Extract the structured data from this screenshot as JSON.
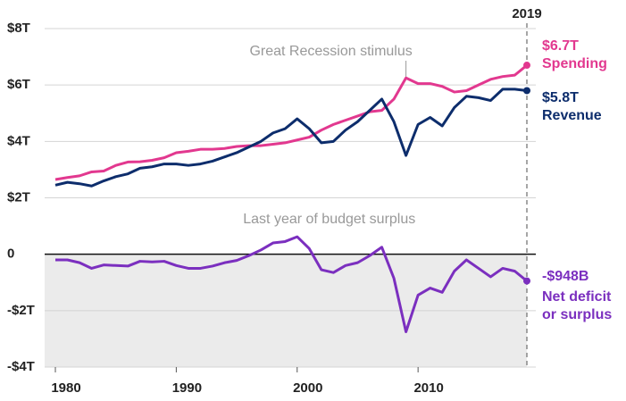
{
  "chart_data": {
    "type": "line",
    "x": [
      1980,
      1981,
      1982,
      1983,
      1984,
      1985,
      1986,
      1987,
      1988,
      1989,
      1990,
      1991,
      1992,
      1993,
      1994,
      1995,
      1996,
      1997,
      1998,
      1999,
      2000,
      2001,
      2002,
      2003,
      2004,
      2005,
      2006,
      2007,
      2008,
      2009,
      2010,
      2011,
      2012,
      2013,
      2014,
      2015,
      2016,
      2017,
      2018,
      2019
    ],
    "xlim": [
      1980,
      2019
    ],
    "xticks": [
      1980,
      1990,
      2000,
      2010
    ],
    "ylim": [
      -4,
      8
    ],
    "yticks": [
      {
        "value": 8,
        "label": "$8T"
      },
      {
        "value": 6,
        "label": "$6T"
      },
      {
        "value": 4,
        "label": "$4T"
      },
      {
        "value": 2,
        "label": "$2T"
      },
      0,
      {
        "value": -2,
        "label": "-$2T"
      },
      {
        "value": -4,
        "label": "-$4T"
      }
    ],
    "grid": true,
    "marker_year": 2019,
    "annotations": [
      {
        "text": "Great Recession stimulus",
        "x": 2009
      },
      {
        "text": "Last year of budget surplus",
        "x": 2000
      }
    ],
    "series": [
      {
        "name": "Spending",
        "color": "#e2388f",
        "values": [
          2.65,
          2.72,
          2.78,
          2.92,
          2.95,
          3.15,
          3.27,
          3.28,
          3.33,
          3.42,
          3.6,
          3.65,
          3.72,
          3.72,
          3.75,
          3.82,
          3.85,
          3.85,
          3.9,
          3.95,
          4.05,
          4.15,
          4.4,
          4.6,
          4.75,
          4.9,
          5.05,
          5.1,
          5.5,
          6.25,
          6.05,
          6.05,
          5.95,
          5.75,
          5.8,
          6.0,
          6.2,
          6.3,
          6.35,
          6.7
        ],
        "value_labels": [
          null,
          null,
          null,
          null,
          null,
          null,
          null,
          null,
          null,
          null,
          null,
          null,
          null,
          null,
          null,
          null,
          null,
          null,
          null,
          null,
          null,
          null,
          null,
          null,
          null,
          null,
          null,
          null,
          null,
          null,
          null,
          null,
          null,
          null,
          null,
          null,
          null,
          null,
          null,
          "$6.7T"
        ]
      },
      {
        "name": "Revenue",
        "color": "#0d2d6c",
        "values": [
          2.45,
          2.55,
          2.5,
          2.42,
          2.6,
          2.75,
          2.85,
          3.05,
          3.1,
          3.2,
          3.2,
          3.15,
          3.2,
          3.3,
          3.45,
          3.6,
          3.8,
          4.0,
          4.3,
          4.45,
          4.8,
          4.45,
          3.95,
          4.0,
          4.4,
          4.7,
          5.1,
          5.5,
          4.7,
          3.5,
          4.6,
          4.85,
          4.55,
          5.2,
          5.6,
          5.55,
          5.45,
          5.85,
          5.85,
          5.8
        ],
        "value_labels": [
          null,
          null,
          null,
          null,
          null,
          null,
          null,
          null,
          null,
          null,
          null,
          null,
          null,
          null,
          null,
          null,
          null,
          null,
          null,
          null,
          null,
          null,
          null,
          null,
          null,
          null,
          null,
          null,
          null,
          null,
          null,
          null,
          null,
          null,
          null,
          null,
          null,
          null,
          null,
          "$5.8T"
        ]
      },
      {
        "name": "Net deficit or surplus",
        "color": "#7b2fbf",
        "values": [
          -0.2,
          -0.2,
          -0.3,
          -0.5,
          -0.38,
          -0.4,
          -0.42,
          -0.25,
          -0.27,
          -0.25,
          -0.4,
          -0.5,
          -0.5,
          -0.42,
          -0.3,
          -0.22,
          -0.05,
          0.15,
          0.4,
          0.45,
          0.62,
          0.2,
          -0.55,
          -0.65,
          -0.4,
          -0.3,
          -0.05,
          0.25,
          -0.85,
          -2.75,
          -1.45,
          -1.2,
          -1.35,
          -0.6,
          -0.2,
          -0.5,
          -0.8,
          -0.5,
          -0.6,
          -0.948
        ],
        "value_labels": [
          null,
          null,
          null,
          null,
          null,
          null,
          null,
          null,
          null,
          null,
          null,
          null,
          null,
          null,
          null,
          null,
          null,
          null,
          null,
          null,
          null,
          null,
          null,
          null,
          null,
          null,
          null,
          null,
          null,
          null,
          null,
          null,
          null,
          null,
          null,
          null,
          null,
          null,
          null,
          "-$948B"
        ]
      }
    ]
  }
}
